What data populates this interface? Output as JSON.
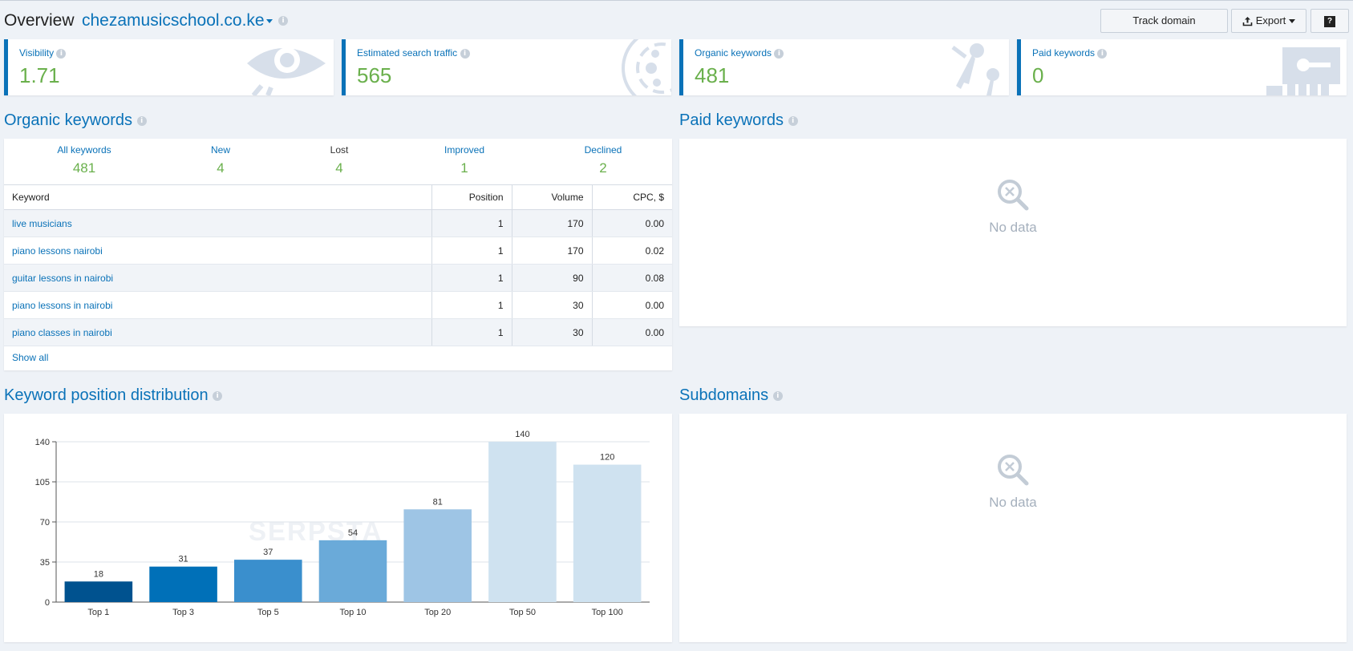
{
  "header": {
    "title": "Overview",
    "domain": "chezamusicschool.co.ke",
    "track_label": "Track domain",
    "export_label": "Export",
    "help_label": "?"
  },
  "cards": [
    {
      "label": "Visibility",
      "value": "1.71"
    },
    {
      "label": "Estimated search traffic",
      "value": "565"
    },
    {
      "label": "Organic keywords",
      "value": "481"
    },
    {
      "label": "Paid keywords",
      "value": "0"
    }
  ],
  "organic": {
    "title": "Organic keywords",
    "stats": [
      {
        "label": "All keywords",
        "value": "481"
      },
      {
        "label": "New",
        "value": "4"
      },
      {
        "label": "Lost",
        "value": "4"
      },
      {
        "label": "Improved",
        "value": "1"
      },
      {
        "label": "Declined",
        "value": "2"
      }
    ],
    "columns": [
      "Keyword",
      "Position",
      "Volume",
      "CPC, $"
    ],
    "rows": [
      [
        "live musicians",
        "1",
        "170",
        "0.00"
      ],
      [
        "piano lessons nairobi",
        "1",
        "170",
        "0.02"
      ],
      [
        "guitar lessons in nairobi",
        "1",
        "90",
        "0.08"
      ],
      [
        "piano lessons in nairobi",
        "1",
        "30",
        "0.00"
      ],
      [
        "piano classes in nairobi",
        "1",
        "30",
        "0.00"
      ]
    ],
    "show_all": "Show all"
  },
  "paid": {
    "title": "Paid keywords",
    "empty_text": "No data"
  },
  "distribution": {
    "title": "Keyword position distribution",
    "watermark": "SERPSTA"
  },
  "subdomains": {
    "title": "Subdomains",
    "empty_text": "No data"
  },
  "colors": {
    "accent": "#0a72b8",
    "value_green": "#6ab04c",
    "bar_colors": [
      "#00528f",
      "#0070b8",
      "#3a8fcd",
      "#6aaad9",
      "#9ec5e5",
      "#cfe2f0",
      "#cfe2f0"
    ]
  },
  "chart_data": {
    "type": "bar",
    "categories": [
      "Top 1",
      "Top 3",
      "Top 5",
      "Top 10",
      "Top 20",
      "Top 50",
      "Top 100"
    ],
    "values": [
      18,
      31,
      37,
      54,
      81,
      140,
      120
    ],
    "ylim": [
      0,
      140
    ],
    "yticks": [
      0,
      35,
      70,
      105,
      140
    ],
    "grid": true,
    "xlabel": "",
    "ylabel": ""
  }
}
